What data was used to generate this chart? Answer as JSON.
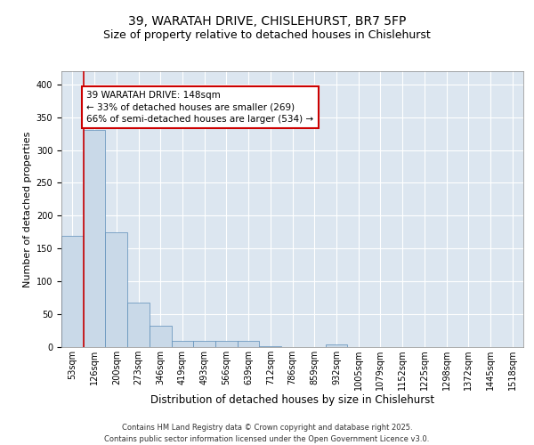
{
  "title1": "39, WARATAH DRIVE, CHISLEHURST, BR7 5FP",
  "title2": "Size of property relative to detached houses in Chislehurst",
  "xlabel": "Distribution of detached houses by size in Chislehurst",
  "ylabel": "Number of detached properties",
  "bar_labels": [
    "53sqm",
    "126sqm",
    "200sqm",
    "273sqm",
    "346sqm",
    "419sqm",
    "493sqm",
    "566sqm",
    "639sqm",
    "712sqm",
    "786sqm",
    "859sqm",
    "932sqm",
    "1005sqm",
    "1079sqm",
    "1152sqm",
    "1225sqm",
    "1298sqm",
    "1372sqm",
    "1445sqm",
    "1518sqm"
  ],
  "bar_values": [
    170,
    330,
    175,
    68,
    33,
    10,
    10,
    9,
    10,
    1,
    0,
    0,
    4,
    0,
    0,
    0,
    0,
    0,
    0,
    0,
    0
  ],
  "bar_color": "#c9d9e8",
  "bar_edge_color": "#5b8db8",
  "vline_color": "#cc0000",
  "annotation_text": "39 WARATAH DRIVE: 148sqm\n← 33% of detached houses are smaller (269)\n66% of semi-detached houses are larger (534) →",
  "annotation_box_facecolor": "#ffffff",
  "annotation_box_edgecolor": "#cc0000",
  "ylim": [
    0,
    420
  ],
  "yticks": [
    0,
    50,
    100,
    150,
    200,
    250,
    300,
    350,
    400
  ],
  "background_color": "#dce6f0",
  "footnote": "Contains HM Land Registry data © Crown copyright and database right 2025.\nContains public sector information licensed under the Open Government Licence v3.0.",
  "title1_fontsize": 10,
  "title2_fontsize": 9,
  "tick_fontsize": 7,
  "xlabel_fontsize": 8.5,
  "ylabel_fontsize": 8,
  "footnote_fontsize": 6,
  "annot_fontsize": 7.5
}
